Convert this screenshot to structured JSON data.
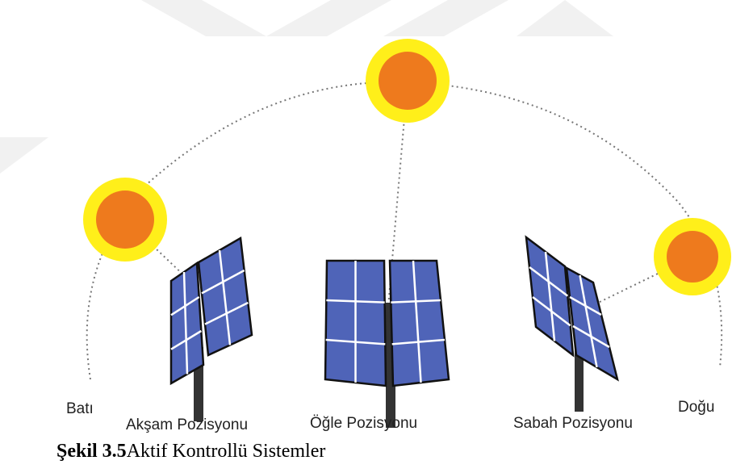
{
  "labels": {
    "west": "Batı",
    "evening": "Akşam Pozisyonu",
    "noon": "Öğle Pozisyonu",
    "morning": "Sabah Pozisyonu",
    "east": "Doğu"
  },
  "caption": {
    "number": "Şekil 3.5",
    "text": "Aktif Kontrollü Sistemler"
  }
}
